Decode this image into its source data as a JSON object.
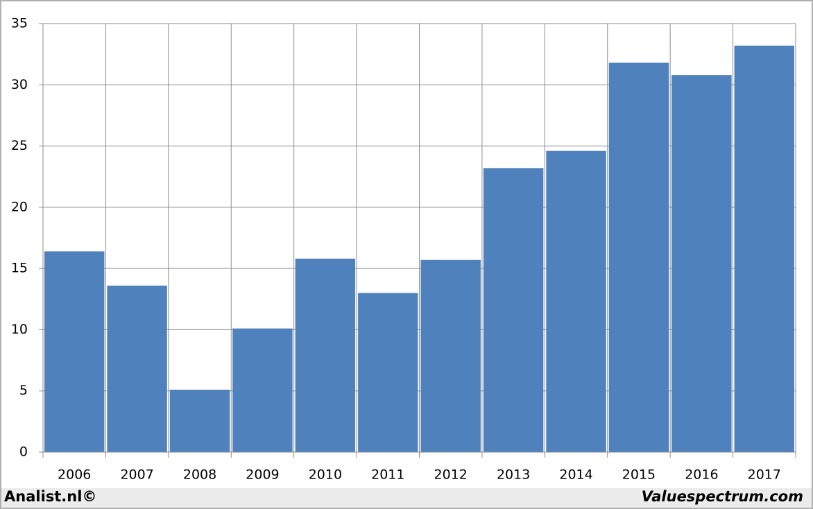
{
  "chart_data": {
    "type": "bar",
    "categories": [
      "2006",
      "2007",
      "2008",
      "2009",
      "2010",
      "2011",
      "2012",
      "2013",
      "2014",
      "2015",
      "2016",
      "2017"
    ],
    "values": [
      16.4,
      13.6,
      5.1,
      10.1,
      15.8,
      13.0,
      15.7,
      23.2,
      24.6,
      31.8,
      30.8,
      33.2
    ],
    "color": "#4f81bd",
    "ylim": [
      0,
      35
    ],
    "yticks": [
      0,
      5,
      10,
      15,
      20,
      25,
      30,
      35
    ],
    "grid": true
  },
  "footer": {
    "left": "Analist.nl©",
    "right": "Valuespectrum.com"
  }
}
